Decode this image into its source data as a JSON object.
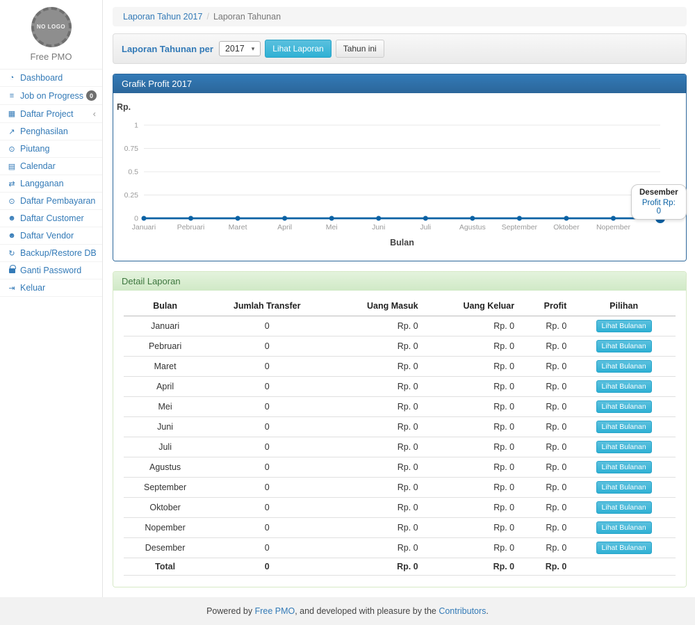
{
  "app": {
    "brand": "Free PMO",
    "logo_text": "NO LOGO"
  },
  "sidebar": {
    "items": [
      {
        "id": "dashboard",
        "label": "Dashboard",
        "icon": "dashboard-icon"
      },
      {
        "id": "job-on-progress",
        "label": "Job on Progress",
        "icon": "tasks-icon",
        "badge": "0"
      },
      {
        "id": "daftar-project",
        "label": "Daftar Project",
        "icon": "table-icon",
        "chevron": true
      },
      {
        "id": "penghasilan",
        "label": "Penghasilan",
        "icon": "chart-line-icon"
      },
      {
        "id": "piutang",
        "label": "Piutang",
        "icon": "money-icon"
      },
      {
        "id": "calendar",
        "label": "Calendar",
        "icon": "calendar-icon"
      },
      {
        "id": "langganan",
        "label": "Langganan",
        "icon": "retweet-icon"
      },
      {
        "id": "daftar-pembayaran",
        "label": "Daftar Pembayaran",
        "icon": "money-icon"
      },
      {
        "id": "daftar-customer",
        "label": "Daftar Customer",
        "icon": "users-icon"
      },
      {
        "id": "daftar-vendor",
        "label": "Daftar Vendor",
        "icon": "users-icon"
      },
      {
        "id": "backup-restore-db",
        "label": "Backup/Restore DB",
        "icon": "refresh-icon"
      },
      {
        "id": "ganti-password",
        "label": "Ganti Password",
        "icon": "lock-icon"
      },
      {
        "id": "keluar",
        "label": "Keluar",
        "icon": "sign-out-icon"
      }
    ]
  },
  "breadcrumb": {
    "link": "Laporan Tahun 2017",
    "current": "Laporan Tahunan"
  },
  "filter": {
    "label": "Laporan Tahunan per",
    "year_value": "2017",
    "view_button": "Lihat Laporan",
    "this_year_button": "Tahun ini"
  },
  "chart": {
    "panel_title": "Grafik Profit 2017",
    "tooltip": {
      "title": "Desember",
      "value": "Profit Rp: 0"
    }
  },
  "chart_data": {
    "type": "line",
    "title": "Grafik Profit 2017",
    "categories": [
      "Januari",
      "Pebruari",
      "Maret",
      "April",
      "Mei",
      "Juni",
      "Juli",
      "Agustus",
      "September",
      "Oktober",
      "Nopember",
      "Desember"
    ],
    "series": [
      {
        "name": "Profit",
        "values": [
          0,
          0,
          0,
          0,
          0,
          0,
          0,
          0,
          0,
          0,
          0,
          0
        ]
      }
    ],
    "xlabel": "Bulan",
    "ylabel": "Rp.",
    "ylim": [
      0,
      1
    ],
    "y_ticks": [
      0,
      0.25,
      0.5,
      0.75,
      1
    ],
    "grid": true,
    "line_color": "#0b62a4",
    "legend_position": "none"
  },
  "detail": {
    "panel_title": "Detail Laporan",
    "table": {
      "headers": [
        "Bulan",
        "Jumlah Transfer",
        "Uang Masuk",
        "Uang Keluar",
        "Profit",
        "Pilihan"
      ],
      "col_align": [
        "center",
        "center",
        "right",
        "right",
        "right",
        "center"
      ],
      "action_label": "Lihat Bulanan",
      "rows": [
        [
          "Januari",
          "0",
          "Rp. 0",
          "Rp. 0",
          "Rp. 0"
        ],
        [
          "Pebruari",
          "0",
          "Rp. 0",
          "Rp. 0",
          "Rp. 0"
        ],
        [
          "Maret",
          "0",
          "Rp. 0",
          "Rp. 0",
          "Rp. 0"
        ],
        [
          "April",
          "0",
          "Rp. 0",
          "Rp. 0",
          "Rp. 0"
        ],
        [
          "Mei",
          "0",
          "Rp. 0",
          "Rp. 0",
          "Rp. 0"
        ],
        [
          "Juni",
          "0",
          "Rp. 0",
          "Rp. 0",
          "Rp. 0"
        ],
        [
          "Juli",
          "0",
          "Rp. 0",
          "Rp. 0",
          "Rp. 0"
        ],
        [
          "Agustus",
          "0",
          "Rp. 0",
          "Rp. 0",
          "Rp. 0"
        ],
        [
          "September",
          "0",
          "Rp. 0",
          "Rp. 0",
          "Rp. 0"
        ],
        [
          "Oktober",
          "0",
          "Rp. 0",
          "Rp. 0",
          "Rp. 0"
        ],
        [
          "Nopember",
          "0",
          "Rp. 0",
          "Rp. 0",
          "Rp. 0"
        ],
        [
          "Desember",
          "0",
          "Rp. 0",
          "Rp. 0",
          "Rp. 0"
        ]
      ],
      "total": [
        "Total",
        "0",
        "Rp. 0",
        "Rp. 0",
        "Rp. 0"
      ]
    }
  },
  "footer": {
    "prefix": "Powered by ",
    "link1": "Free PMO",
    "middle": ", and developed with pleasure by the ",
    "link2": "Contributors",
    "suffix": "."
  },
  "colors": {
    "primary": "#337ab7",
    "panel_primary_header": "#2e6da4",
    "panel_success_header": "#dff0d8",
    "info_button": "#5bc0de",
    "line": "#0b62a4"
  }
}
